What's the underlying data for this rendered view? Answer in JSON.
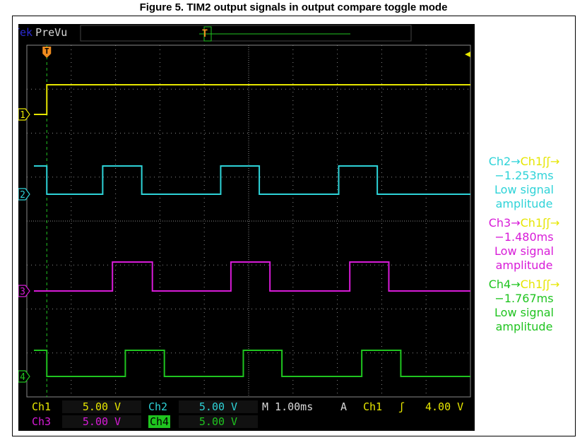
{
  "figure_title": "Figure 5. TIM2 output signals in output compare toggle mode",
  "scope": {
    "brand_fragment": "Tek",
    "mode": "PreVu",
    "trigger_marker": "T",
    "channel_markers": [
      "1",
      "2",
      "3",
      "4"
    ]
  },
  "status_bar": {
    "ch1_label": "Ch1",
    "ch1_value": "5.00 V",
    "ch2_label": "Ch2",
    "ch2_value": "5.00 V",
    "ch3_label": "Ch3",
    "ch3_value": "5.00 V",
    "ch4_label": "Ch4",
    "ch4_value": "5.00 V",
    "timebase": "M 1.00ms",
    "trigger_mode": "A",
    "trigger_source": "Ch1",
    "trigger_slope_symbol": "ʃ",
    "trigger_level": "4.00 V"
  },
  "measurements": [
    {
      "line1_from": "Ch2",
      "line1_arrow": "→",
      "line1_to": "Ch1",
      "line1_edges": "ʃʃ→",
      "delay": "−1.253ms",
      "line3": "Low signal",
      "line4": "amplitude",
      "color": "#2ed3d8",
      "to_color": "#e6e600"
    },
    {
      "line1_from": "Ch3",
      "line1_arrow": "→",
      "line1_to": "Ch1",
      "line1_edges": "ʃʃ→",
      "delay": "−1.480ms",
      "line3": "Low signal",
      "line4": "amplitude",
      "color": "#d81bd8",
      "to_color": "#e6e600"
    },
    {
      "line1_from": "Ch4",
      "line1_arrow": "→",
      "line1_to": "Ch1",
      "line1_edges": "ʃʃ→",
      "delay": "−1.767ms",
      "line3": "Low signal",
      "line4": "amplitude",
      "color": "#1fc41f",
      "to_color": "#e6e600"
    }
  ],
  "colors": {
    "ch1": "#e6e600",
    "ch2": "#2ed3d8",
    "ch3": "#d81bd8",
    "ch4": "#1fc41f",
    "trigger": "#f08c1e",
    "grid": "#8a8a8a"
  },
  "chart_data": {
    "type": "line",
    "x_unit": "ms",
    "x_range": [
      0,
      10
    ],
    "x_divisions": 10,
    "time_per_div_ms": 1.0,
    "volts_per_div": 5.0,
    "trigger_time_ms": 0.45,
    "grid": true,
    "series": [
      {
        "name": "Ch1",
        "high": true,
        "transitions_ms": [
          0.45
        ],
        "initial": "low"
      },
      {
        "name": "Ch2",
        "initial": "high",
        "transitions_ms": [
          0.45,
          1.71,
          2.59,
          4.37,
          5.24,
          7.03,
          7.9
        ]
      },
      {
        "name": "Ch3",
        "initial": "low",
        "transitions_ms": [
          1.93,
          2.83,
          4.6,
          5.48,
          7.28,
          8.16
        ]
      },
      {
        "name": "Ch4",
        "initial": "high",
        "transitions_ms": [
          0.45,
          2.22,
          3.1,
          4.88,
          5.75,
          7.55,
          8.43
        ]
      }
    ]
  }
}
